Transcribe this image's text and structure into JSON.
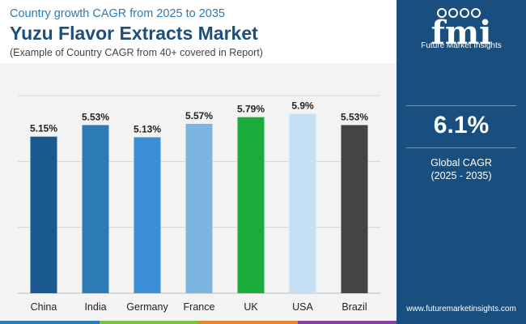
{
  "header": {
    "subtitle": "Country growth CAGR from 2025 to 2035",
    "title": "Yuzu Flavor Extracts Market",
    "note": "(Example of Country CAGR from 40+ covered in Report)"
  },
  "chart_data": {
    "type": "bar",
    "categories": [
      "China",
      "India",
      "Germany",
      "France",
      "UK",
      "USA",
      "Brazil"
    ],
    "values": [
      5.15,
      5.53,
      5.13,
      5.57,
      5.79,
      5.9,
      5.53
    ],
    "labels": [
      "5.15%",
      "5.53%",
      "5.13%",
      "5.57%",
      "5.79%",
      "5.9%",
      "5.53%"
    ],
    "colors": [
      "#1a5a8f",
      "#2c7bb6",
      "#3a8fd6",
      "#7cb5e0",
      "#1aab3a",
      "#c5e0f4",
      "#444444"
    ],
    "ylim": [
      0,
      6.5
    ],
    "grid": true,
    "title": "",
    "xlabel": "",
    "ylabel": ""
  },
  "sidebar": {
    "logo_text": "fmi",
    "logo_tagline": "Future Market Insights",
    "cagr_value": "6.1%",
    "cagr_label": "Global CAGR",
    "cagr_range": "(2025 - 2035)",
    "website": "www.futuremarketinsights.com"
  },
  "bottom_stripe_colors": [
    "#2c7bb6",
    "#7cc142",
    "#e8872a",
    "#8a3fa0"
  ]
}
